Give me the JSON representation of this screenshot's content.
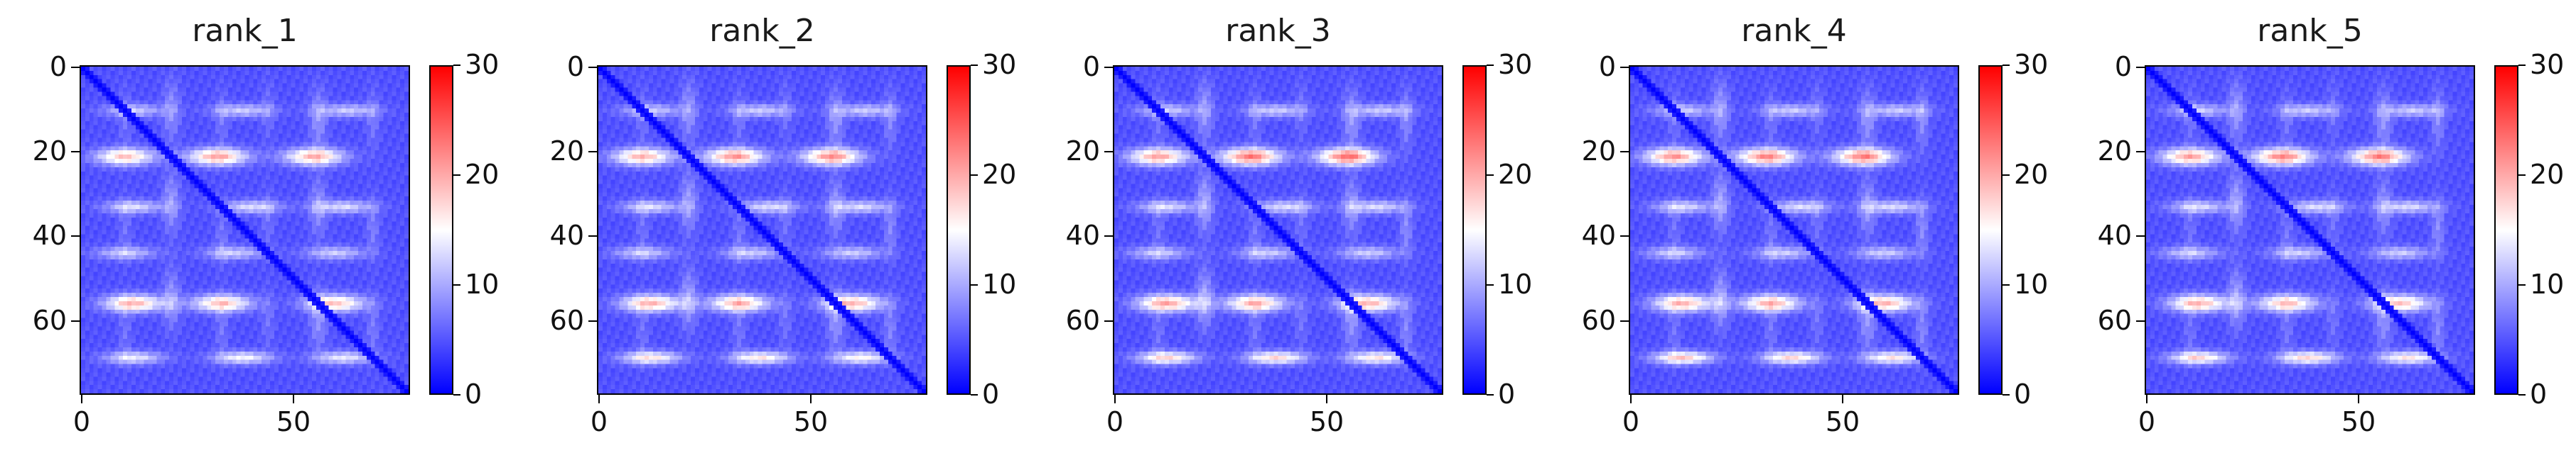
{
  "chart_data": [
    {
      "type": "heatmap",
      "title": "rank_1",
      "matrix_size": 78,
      "x_ticks": [
        0,
        50
      ],
      "y_ticks": [
        0,
        20,
        40,
        60
      ],
      "colorbar": {
        "ticks": [
          0,
          10,
          20,
          30
        ],
        "vmin": 0,
        "vmax": 30,
        "colormap": "bwr"
      },
      "diagonal_value": 0,
      "background_value": 4,
      "row_bands": [
        {
          "row": 10,
          "width": 1.5,
          "peaks": [
            [
              12,
              8
            ],
            [
              38,
              8
            ],
            [
              63,
              8
            ]
          ]
        },
        {
          "row": 21,
          "width": 2,
          "peaks": [
            [
              10,
              15
            ],
            [
              32,
              17
            ],
            [
              55,
              16
            ]
          ]
        },
        {
          "row": 33,
          "width": 1.5,
          "peaks": [
            [
              12,
              9
            ],
            [
              40,
              9
            ],
            [
              62,
              9
            ]
          ]
        },
        {
          "row": 44,
          "width": 1.5,
          "peaks": [
            [
              10,
              8
            ],
            [
              36,
              8
            ],
            [
              60,
              8
            ]
          ]
        },
        {
          "row": 56,
          "width": 2,
          "peaks": [
            [
              12,
              16
            ],
            [
              33,
              15
            ],
            [
              60,
              15
            ]
          ]
        },
        {
          "row": 69,
          "width": 1.5,
          "peaks": [
            [
              12,
              10
            ],
            [
              38,
              11
            ],
            [
              62,
              10
            ]
          ]
        }
      ]
    },
    {
      "type": "heatmap",
      "title": "rank_2",
      "matrix_size": 78,
      "x_ticks": [
        0,
        50
      ],
      "y_ticks": [
        0,
        20,
        40,
        60
      ],
      "colorbar": {
        "ticks": [
          0,
          10,
          20,
          30
        ],
        "vmin": 0,
        "vmax": 30,
        "colormap": "bwr"
      },
      "diagonal_value": 0,
      "background_value": 4,
      "row_bands": [
        {
          "row": 10,
          "width": 1.5,
          "peaks": [
            [
              12,
              8
            ],
            [
              38,
              8
            ],
            [
              63,
              8
            ]
          ]
        },
        {
          "row": 21,
          "width": 2,
          "peaks": [
            [
              10,
              16
            ],
            [
              32,
              18
            ],
            [
              55,
              18
            ]
          ]
        },
        {
          "row": 33,
          "width": 1.5,
          "peaks": [
            [
              12,
              9
            ],
            [
              40,
              9
            ],
            [
              62,
              9
            ]
          ]
        },
        {
          "row": 44,
          "width": 1.5,
          "peaks": [
            [
              10,
              8
            ],
            [
              36,
              8
            ],
            [
              60,
              8
            ]
          ]
        },
        {
          "row": 56,
          "width": 2,
          "peaks": [
            [
              12,
              16
            ],
            [
              33,
              16
            ],
            [
              60,
              16
            ]
          ]
        },
        {
          "row": 69,
          "width": 1.5,
          "peaks": [
            [
              12,
              13
            ],
            [
              38,
              13
            ],
            [
              62,
              12
            ]
          ]
        }
      ]
    },
    {
      "type": "heatmap",
      "title": "rank_3",
      "matrix_size": 78,
      "x_ticks": [
        0,
        50
      ],
      "y_ticks": [
        0,
        20,
        40,
        60
      ],
      "colorbar": {
        "ticks": [
          0,
          10,
          20,
          30
        ],
        "vmin": 0,
        "vmax": 30,
        "colormap": "bwr"
      },
      "diagonal_value": 0,
      "background_value": 4,
      "row_bands": [
        {
          "row": 10,
          "width": 1.5,
          "peaks": [
            [
              12,
              8
            ],
            [
              38,
              8
            ],
            [
              63,
              8
            ]
          ]
        },
        {
          "row": 21,
          "width": 2,
          "peaks": [
            [
              10,
              17
            ],
            [
              32,
              20
            ],
            [
              55,
              20
            ]
          ]
        },
        {
          "row": 33,
          "width": 1.5,
          "peaks": [
            [
              12,
              9
            ],
            [
              40,
              9
            ],
            [
              62,
              9
            ]
          ]
        },
        {
          "row": 44,
          "width": 1.5,
          "peaks": [
            [
              10,
              8
            ],
            [
              36,
              8
            ],
            [
              60,
              8
            ]
          ]
        },
        {
          "row": 56,
          "width": 2,
          "peaks": [
            [
              12,
              17
            ],
            [
              33,
              16
            ],
            [
              60,
              16
            ]
          ]
        },
        {
          "row": 69,
          "width": 1.5,
          "peaks": [
            [
              12,
              14
            ],
            [
              38,
              14
            ],
            [
              62,
              13
            ]
          ]
        }
      ]
    },
    {
      "type": "heatmap",
      "title": "rank_4",
      "matrix_size": 78,
      "x_ticks": [
        0,
        50
      ],
      "y_ticks": [
        0,
        20,
        40,
        60
      ],
      "colorbar": {
        "ticks": [
          0,
          10,
          20,
          30
        ],
        "vmin": 0,
        "vmax": 30,
        "colormap": "bwr"
      },
      "diagonal_value": 0,
      "background_value": 4,
      "row_bands": [
        {
          "row": 10,
          "width": 1.5,
          "peaks": [
            [
              12,
              8
            ],
            [
              38,
              8
            ],
            [
              63,
              8
            ]
          ]
        },
        {
          "row": 21,
          "width": 2,
          "peaks": [
            [
              10,
              18
            ],
            [
              32,
              19
            ],
            [
              55,
              19
            ]
          ]
        },
        {
          "row": 33,
          "width": 1.5,
          "peaks": [
            [
              12,
              9
            ],
            [
              40,
              9
            ],
            [
              62,
              9
            ]
          ]
        },
        {
          "row": 44,
          "width": 1.5,
          "peaks": [
            [
              10,
              8
            ],
            [
              36,
              8
            ],
            [
              60,
              8
            ]
          ]
        },
        {
          "row": 56,
          "width": 2,
          "peaks": [
            [
              12,
              16
            ],
            [
              33,
              16
            ],
            [
              60,
              16
            ]
          ]
        },
        {
          "row": 69,
          "width": 1.5,
          "peaks": [
            [
              12,
              15
            ],
            [
              38,
              14
            ],
            [
              62,
              13
            ]
          ]
        }
      ]
    },
    {
      "type": "heatmap",
      "title": "rank_5",
      "matrix_size": 78,
      "x_ticks": [
        0,
        50
      ],
      "y_ticks": [
        0,
        20,
        40,
        60
      ],
      "colorbar": {
        "ticks": [
          0,
          10,
          20,
          30
        ],
        "vmin": 0,
        "vmax": 30,
        "colormap": "bwr"
      },
      "diagonal_value": 0,
      "background_value": 4,
      "row_bands": [
        {
          "row": 10,
          "width": 1.5,
          "peaks": [
            [
              12,
              8
            ],
            [
              38,
              8
            ],
            [
              63,
              8
            ]
          ]
        },
        {
          "row": 21,
          "width": 2,
          "peaks": [
            [
              10,
              17
            ],
            [
              32,
              19
            ],
            [
              55,
              19
            ]
          ]
        },
        {
          "row": 33,
          "width": 1.5,
          "peaks": [
            [
              12,
              9
            ],
            [
              40,
              9
            ],
            [
              62,
              9
            ]
          ]
        },
        {
          "row": 44,
          "width": 1.5,
          "peaks": [
            [
              10,
              8
            ],
            [
              36,
              8
            ],
            [
              60,
              8
            ]
          ]
        },
        {
          "row": 56,
          "width": 2,
          "peaks": [
            [
              12,
              16
            ],
            [
              33,
              15
            ],
            [
              60,
              15
            ]
          ]
        },
        {
          "row": 69,
          "width": 1.5,
          "peaks": [
            [
              12,
              14
            ],
            [
              38,
              14
            ],
            [
              62,
              13
            ]
          ]
        }
      ]
    }
  ]
}
